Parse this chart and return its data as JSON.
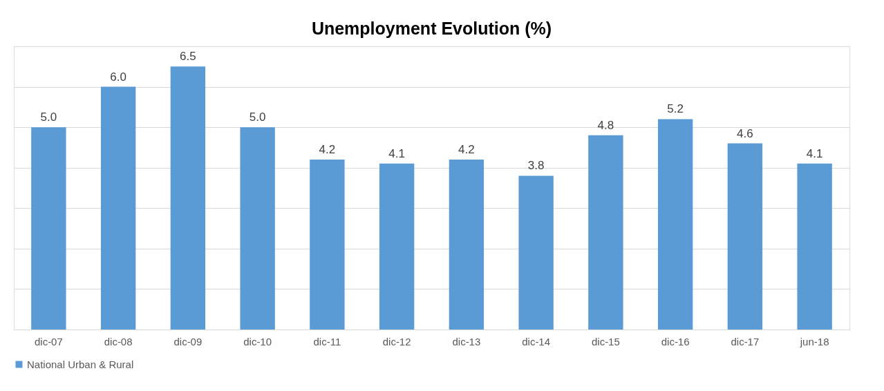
{
  "chart_data": {
    "type": "bar",
    "title": "Unemployment Evolution (%)",
    "categories": [
      "dic-07",
      "dic-08",
      "dic-09",
      "dic-10",
      "dic-11",
      "dic-12",
      "dic-13",
      "dic-14",
      "dic-15",
      "dic-16",
      "dic-17",
      "jun-18"
    ],
    "series": [
      {
        "name": "National Urban & Rural",
        "color": "#5b9bd5",
        "values": [
          5.0,
          6.0,
          6.5,
          5.0,
          4.2,
          4.1,
          4.2,
          3.8,
          4.8,
          5.2,
          4.6,
          4.1
        ],
        "value_labels": [
          "5.0",
          "6.0",
          "6.5",
          "5.0",
          "4.2",
          "4.1",
          "4.2",
          "3.8",
          "4.8",
          "5.2",
          "4.6",
          "4.1"
        ]
      }
    ],
    "ylim": [
      0,
      7
    ],
    "yticks": [
      {
        "value": 0,
        "label": null
      },
      {
        "value": 1,
        "label": null
      },
      {
        "value": 2,
        "label": null
      },
      {
        "value": 3,
        "label": null
      },
      {
        "value": 4,
        "label": null
      },
      {
        "value": 5,
        "label": null
      },
      {
        "value": 6,
        "label": null
      },
      {
        "value": 7,
        "label": null
      }
    ],
    "tick_labels": "x",
    "grid": "y",
    "legend": "bottom"
  }
}
